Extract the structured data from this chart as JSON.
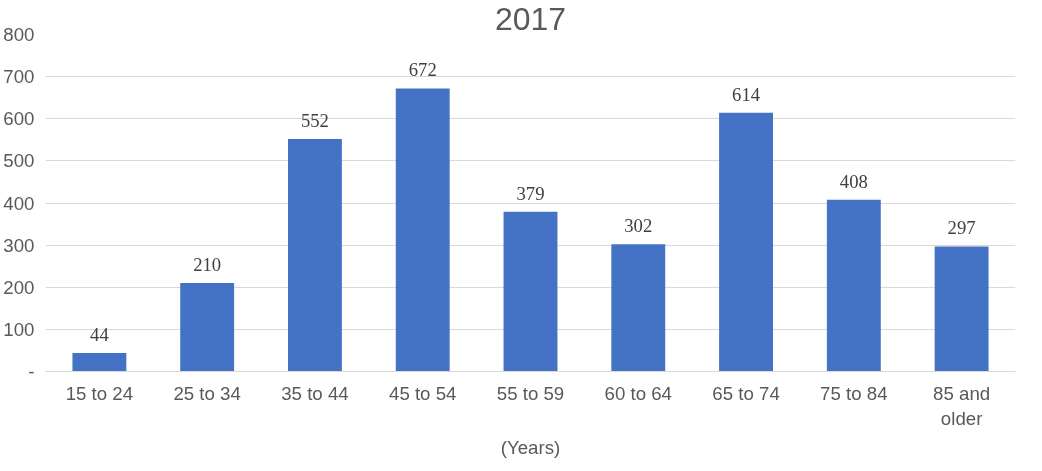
{
  "chart_data": {
    "type": "bar",
    "title": "2017",
    "xlabel": "(Years)",
    "categories": [
      "15 to 24",
      "25 to 34",
      "35 to 44",
      "45 to 54",
      "55 to 59",
      "60 to 64",
      "65 to 74",
      "75 to 84",
      "85 and older"
    ],
    "values": [
      44,
      210,
      552,
      672,
      379,
      302,
      614,
      408,
      297
    ],
    "color": "#4472c4",
    "ylim": [
      0,
      800
    ],
    "yticks": [
      {
        "value": 0,
        "label": "-"
      },
      100,
      200,
      300,
      400,
      500,
      600,
      700,
      800
    ],
    "grid": "y",
    "data_labels": true
  }
}
